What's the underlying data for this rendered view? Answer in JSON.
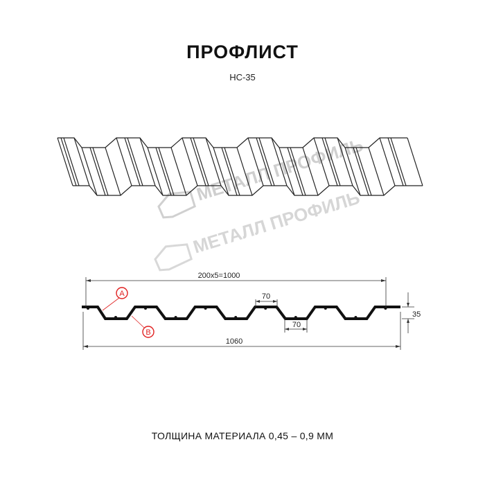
{
  "header": {
    "title": "ПРОФЛИСТ",
    "model": "НС-35"
  },
  "watermark": {
    "text": "МЕТАЛЛ ПРОФИЛЬ",
    "color": "#c8c8c8"
  },
  "drawing": {
    "dimensions": {
      "pitch_total": "200x5=1000",
      "top_flat": "70",
      "bottom_flat": "70",
      "height": "35",
      "overall_width": "1060"
    },
    "markers": [
      {
        "label": "A",
        "color": "#e02020"
      },
      {
        "label": "B",
        "color": "#e02020"
      }
    ]
  },
  "footer": {
    "thickness": "ТОЛЩИНА МАТЕРИАЛА 0,45 – 0,9 ММ"
  }
}
